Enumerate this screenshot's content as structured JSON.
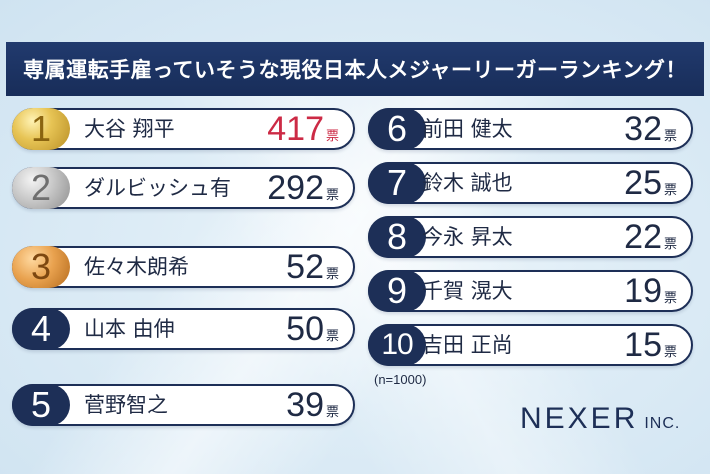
{
  "title": "専属運転手雇っていそうな現役日本人メジャーリーガーランキング！",
  "vote_unit": "票",
  "left": [
    {
      "rank": "1",
      "name": "大谷 翔平",
      "votes": "417"
    },
    {
      "rank": "2",
      "name": "ダルビッシュ有",
      "votes": "292"
    },
    {
      "rank": "3",
      "name": "佐々木朗希",
      "votes": "52"
    },
    {
      "rank": "4",
      "name": "山本 由伸",
      "votes": "50"
    },
    {
      "rank": "5",
      "name": "菅野智之",
      "votes": "39"
    }
  ],
  "right": [
    {
      "rank": "6",
      "name": "前田 健太",
      "votes": "32"
    },
    {
      "rank": "7",
      "name": "鈴木 誠也",
      "votes": "25"
    },
    {
      "rank": "8",
      "name": "今永 昇太",
      "votes": "22"
    },
    {
      "rank": "9",
      "name": "千賀 滉大",
      "votes": "19"
    },
    {
      "rank": "10",
      "name": "吉田 正尚",
      "votes": "15"
    }
  ],
  "sample_size": "(n=1000)",
  "brand": {
    "name": "NEXER",
    "suffix": "INC."
  },
  "colors": {
    "navy": "#1d2f57",
    "highlight_red": "#cc2a45",
    "gold": "#e7c455",
    "silver": "#c7c7c7",
    "bronze": "#e9a24f"
  }
}
